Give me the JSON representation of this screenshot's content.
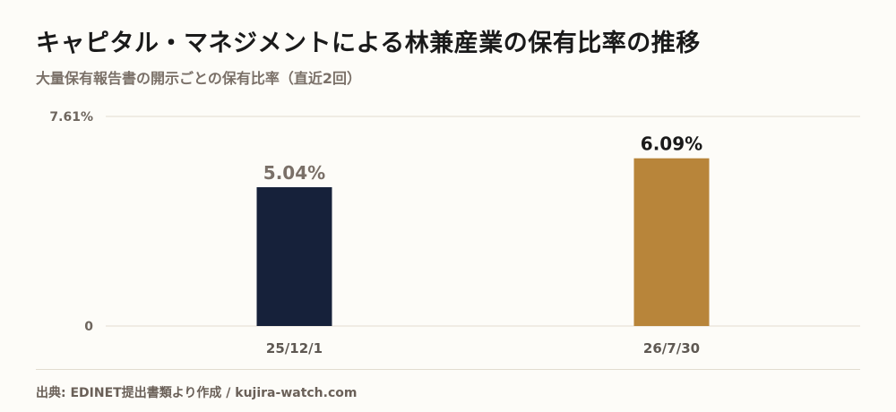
{
  "header": {
    "title": "キャピタル・マネジメントによる林兼産業の保有比率の推移",
    "subtitle": "大量保有報告書の開示ごとの保有比率（直近2回）"
  },
  "footer": {
    "source": "出典: EDINET提出書類より作成 / kujira-watch.com"
  },
  "colors": {
    "bar_first": "#16213a",
    "bar_latest": "#b8853a",
    "grid": "#e2ddd0",
    "label_first": "#7a7068",
    "label_latest": "#1a1a1a"
  },
  "chart_data": {
    "type": "bar",
    "categories": [
      "25/12/1",
      "26/7/30"
    ],
    "values": [
      5.04,
      6.09
    ],
    "value_labels": [
      "5.04%",
      "6.09%"
    ],
    "ylim": [
      0,
      7.61
    ],
    "y_ticks": [
      {
        "value": 0,
        "label": "0"
      },
      {
        "value": 7.61,
        "label": "7.61%"
      }
    ],
    "grid": true,
    "legend": "none"
  }
}
